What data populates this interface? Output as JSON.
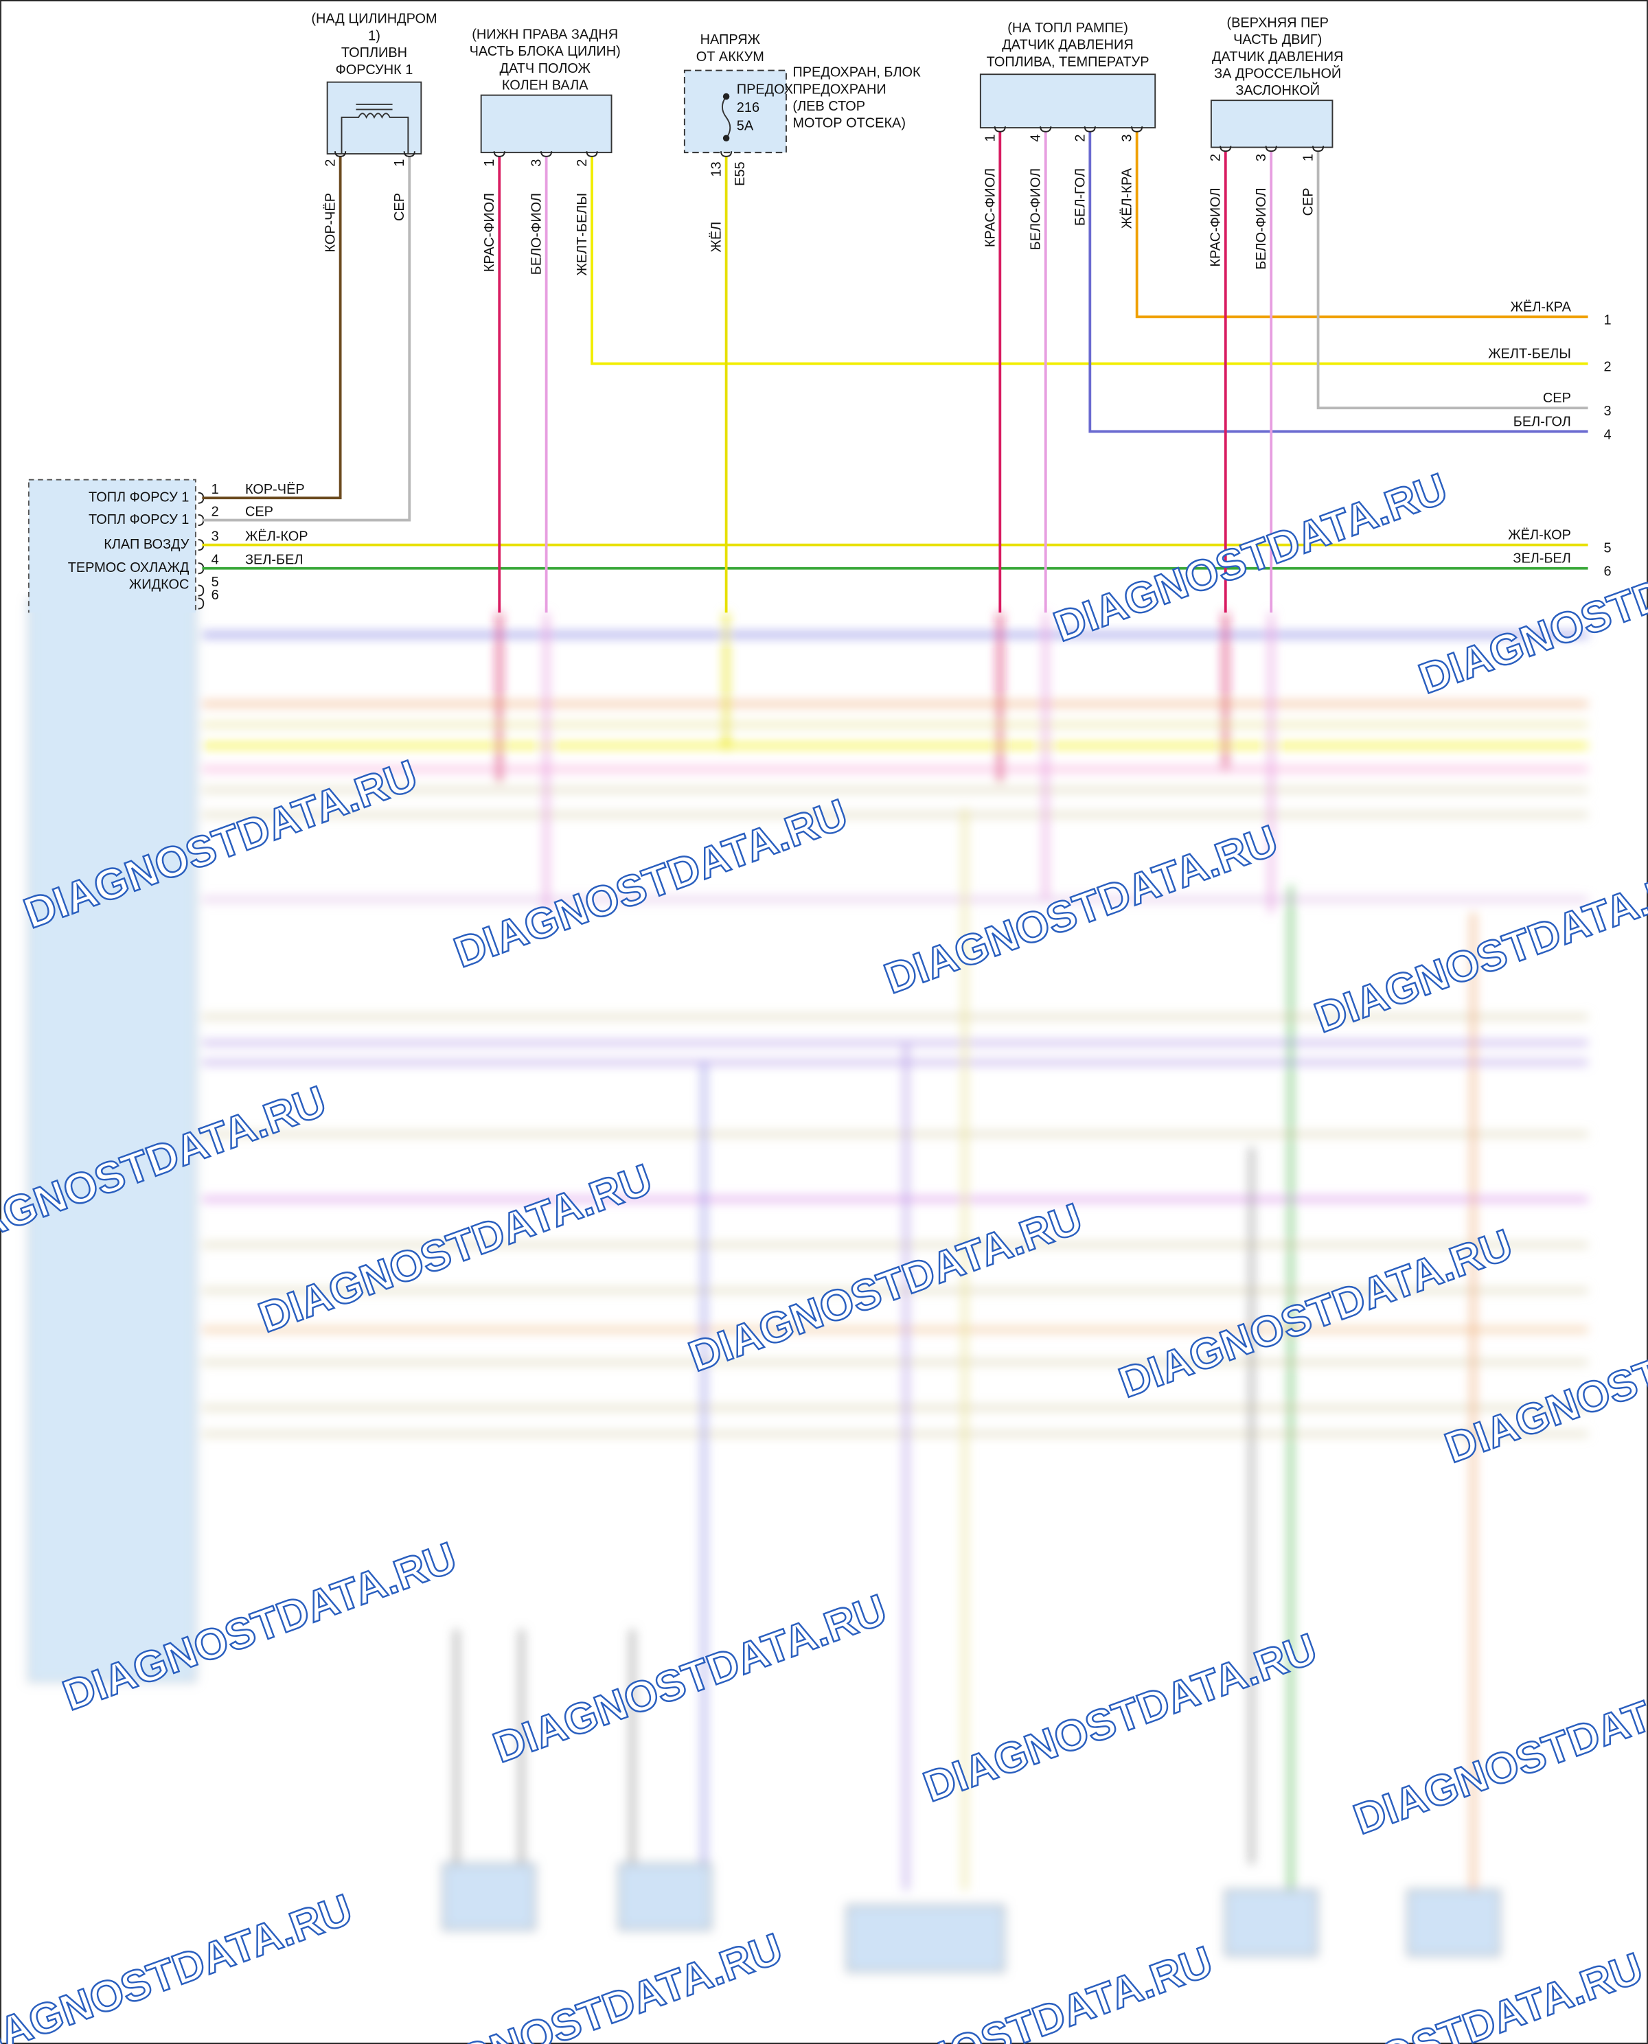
{
  "components": [
    {
      "label": [
        "(НАД ЦИЛИНДРОМ",
        "1)",
        "ТОПЛИВН",
        "ФОРСУНК 1"
      ],
      "pins": [
        {
          "number": "2",
          "wire": "КОР-ЧЁР",
          "color": "#6b4a1e"
        },
        {
          "number": "1",
          "wire": "СЕР",
          "color": "#b8b8b8"
        }
      ]
    },
    {
      "label": [
        "(НИЖН ПРАВА ЗАДНЯ",
        "ЧАСТЬ БЛОКА ЦИЛИН)",
        "ДАТЧ ПОЛОЖ",
        "КОЛЕН ВАЛА"
      ],
      "pins": [
        {
          "number": "1",
          "wire": "КРАС-ФИОЛ",
          "color": "#d81b60"
        },
        {
          "number": "3",
          "wire": "БЕЛО-ФИОЛ",
          "color": "#e79ee0"
        },
        {
          "number": "2",
          "wire": "ЖЕЛТ-БЕЛЫ",
          "color": "#f2ee00"
        }
      ]
    },
    {
      "label": [
        "(НА ТОПЛ РАМПЕ)",
        "ДАТЧИК ДАВЛЕНИЯ",
        "ТОПЛИВА, ТЕМПЕРАТУР"
      ],
      "pins": [
        {
          "number": "1",
          "wire": "КРАС-ФИОЛ",
          "color": "#d81b60"
        },
        {
          "number": "4",
          "wire": "БЕЛО-ФИОЛ",
          "color": "#e79ee0"
        },
        {
          "number": "2",
          "wire": "БЕЛ-ГОЛ",
          "color": "#6a6ad0"
        },
        {
          "number": "3",
          "wire": "ЖЁЛ-КРА",
          "color": "#f0a000"
        }
      ]
    },
    {
      "label": [
        "(ВЕРХНЯЯ ПЕР",
        "ЧАСТЬ ДВИГ)",
        "ДАТЧИК ДАВЛЕНИЯ",
        "ЗА ДРОССЕЛЬНОЙ",
        "ЗАСЛОНКОЙ"
      ],
      "pins": [
        {
          "number": "2",
          "wire": "КРАС-ФИОЛ",
          "color": "#d81b60"
        },
        {
          "number": "3",
          "wire": "БЕЛО-ФИОЛ",
          "color": "#e79ee0"
        },
        {
          "number": "1",
          "wire": "СЕР",
          "color": "#b8b8b8"
        }
      ]
    }
  ],
  "fuse": {
    "title": [
      "НАПРЯЖ",
      "ОТ АККУМ"
    ],
    "label": [
      "ПРЕДОХРАН, БЛОК",
      "ПРЕДОХРАНИ",
      "(ЛЕВ СТОР",
      "МОТОР ОТСЕКА)"
    ],
    "inner": [
      "ПРЕДОХ",
      "216",
      "5A"
    ],
    "pin": "13",
    "terminal": "E55",
    "wire": "ЖЁЛ",
    "color": "#e6e000"
  },
  "outputs": [
    {
      "wire": "ЖЁЛ-КРА",
      "number": "1"
    },
    {
      "wire": "ЖЕЛТ-БЕЛЫ",
      "number": "2"
    },
    {
      "wire": "СЕР",
      "number": "3"
    },
    {
      "wire": "БЕЛ-ГОЛ",
      "number": "4"
    },
    {
      "wire": "ЖЁЛ-КОР",
      "number": "5"
    },
    {
      "wire": "ЗЕЛ-БЕЛ",
      "number": "6"
    }
  ],
  "ecm": {
    "pins": [
      {
        "number": "1",
        "label": [
          "ТОПЛ ФОРСУ 1"
        ],
        "wire": "КОР-ЧЁР"
      },
      {
        "number": "2",
        "label": [
          "ТОПЛ ФОРСУ 1"
        ],
        "wire": "СЕР"
      },
      {
        "number": "3",
        "label": [
          "КЛАП ВОЗДУ"
        ],
        "wire": "ЖЁЛ-КОР",
        "color": "#e8e000"
      },
      {
        "number": "4",
        "label": [
          "ТЕРМОС ОХЛАЖД",
          "ЖИДКОС"
        ],
        "wire": "ЗЕЛ-БЕЛ",
        "color": "#3aa83a"
      },
      {
        "number": "5"
      },
      {
        "number": "6"
      }
    ]
  },
  "watermark": "DIAGNOSTDATA.RU"
}
